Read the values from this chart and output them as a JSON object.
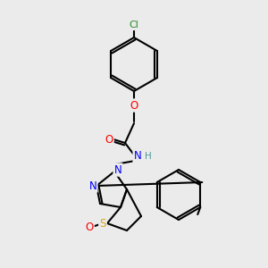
{
  "background_color": "#ebebeb",
  "bond_color": "#000000",
  "atom_colors": {
    "Cl": "#228B22",
    "O": "#FF0000",
    "N": "#0000FF",
    "S": "#DAA520",
    "H": "#4a9a9a",
    "C": "#000000"
  },
  "figsize": [
    3.0,
    3.0
  ],
  "dpi": 100
}
